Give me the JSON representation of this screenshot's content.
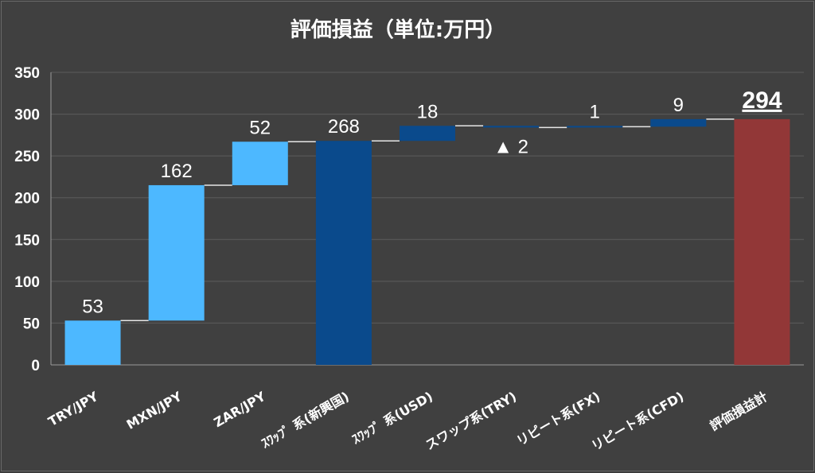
{
  "chart_data": {
    "type": "bar",
    "subtype": "waterfall",
    "title": "評価損益（単位:万円）",
    "xlabel": "",
    "ylabel": "",
    "ylim": [
      0,
      350
    ],
    "yticks": [
      0,
      50,
      100,
      150,
      200,
      250,
      300,
      350
    ],
    "grid": true,
    "categories": [
      "TRY/JPY",
      "MXN/JPY",
      "ZAR/JPY",
      "ｽﾜｯﾌﾟ 系(新興国)",
      "ｽﾜｯﾌﾟ 系(USD)",
      "スワップ系(TRY)",
      "リピート系(FX)",
      "リピート系(CFD)",
      "評価損益計"
    ],
    "steps": [
      {
        "kind": "delta",
        "value": 53,
        "label": "53",
        "color": "#4db8ff"
      },
      {
        "kind": "delta",
        "value": 162,
        "label": "162",
        "color": "#4db8ff"
      },
      {
        "kind": "delta",
        "value": 52,
        "label": "52",
        "color": "#4db8ff"
      },
      {
        "kind": "subtotal",
        "value": 268,
        "label": "268",
        "color": "#0a4a8c"
      },
      {
        "kind": "delta",
        "value": 18,
        "label": "18",
        "color": "#0a4a8c"
      },
      {
        "kind": "delta",
        "value": -2,
        "label": "▲ 2",
        "color": "#0a4a8c"
      },
      {
        "kind": "delta",
        "value": 1,
        "label": "1",
        "color": "#0a4a8c"
      },
      {
        "kind": "delta",
        "value": 9,
        "label": "9",
        "color": "#0a4a8c"
      },
      {
        "kind": "total",
        "value": 294,
        "label": "294",
        "color": "#923737"
      }
    ]
  }
}
